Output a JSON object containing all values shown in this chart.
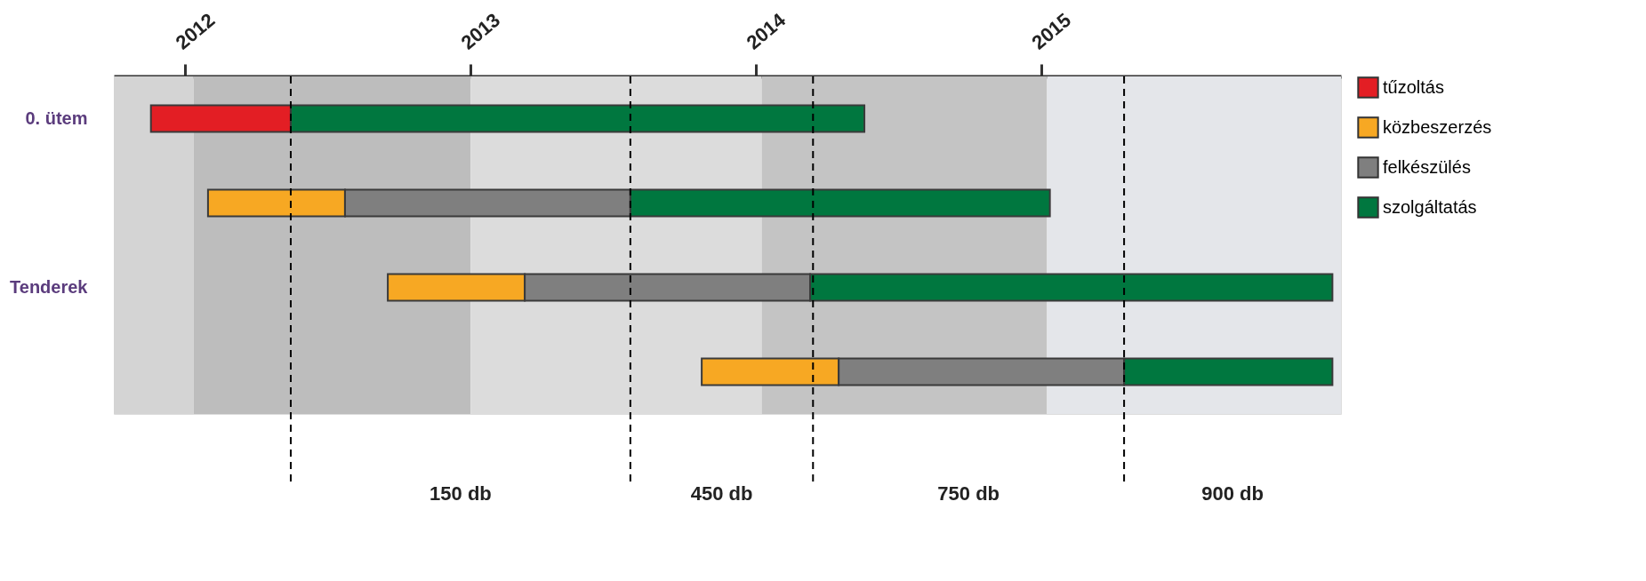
{
  "chart_data": {
    "type": "bar",
    "orientation": "horizontal",
    "categories": [
      "0. ütem",
      null,
      "Tenderek",
      null
    ],
    "series": [
      {
        "name": "tűzoltás",
        "color": "#e31e24",
        "base": [
          2011.88,
          null,
          null,
          null
        ],
        "values": [
          0.49,
          null,
          null,
          null
        ]
      },
      {
        "name": "közbeszerzés",
        "color": "#f7a823",
        "base": [
          null,
          2012.08,
          2012.71,
          2013.81
        ],
        "values": [
          null,
          0.48,
          0.48,
          0.48
        ]
      },
      {
        "name": "felkészülés",
        "color": "#7f7f7f",
        "base": [
          null,
          2012.56,
          2013.19,
          2014.29
        ],
        "values": [
          null,
          1.0,
          1.0,
          1.0
        ]
      },
      {
        "name": "szolgáltatás",
        "color": "#00773f",
        "base": [
          2012.37,
          2013.56,
          2014.19,
          2015.29
        ],
        "values": [
          2.01,
          1.47,
          1.83,
          0.73
        ]
      }
    ],
    "xlim": [
      2011.75,
      2016.05
    ],
    "xticks": [
      2012,
      2013,
      2014,
      2015
    ],
    "bands": [
      {
        "axis": "x",
        "from": 2011.75,
        "to": 2012.03,
        "color": "#d4d4d4"
      },
      {
        "axis": "x",
        "from": 2012.03,
        "to": 2013.0,
        "color": "#bdbdbd"
      },
      {
        "axis": "x",
        "from": 2013.0,
        "to": 2014.02,
        "color": "#dcdcdc"
      },
      {
        "axis": "x",
        "from": 2014.02,
        "to": 2015.02,
        "color": "#c4c4c4"
      },
      {
        "axis": "x",
        "from": 2015.02,
        "to": 2016.05,
        "color": "#e4e6ea"
      }
    ],
    "ref_lines": [
      {
        "axis": "x",
        "value": 2012.37,
        "line_style": "dashed",
        "color": "#000000"
      },
      {
        "axis": "x",
        "value": 2013.56,
        "line_style": "dashed",
        "color": "#000000"
      },
      {
        "axis": "x",
        "value": 2014.2,
        "line_style": "dashed",
        "color": "#000000"
      },
      {
        "axis": "x",
        "value": 2015.29,
        "line_style": "dashed",
        "color": "#000000"
      }
    ],
    "annotations": [
      "150 db",
      "450 db",
      "750 db",
      "900 db"
    ],
    "grid": false,
    "legend": "right"
  }
}
